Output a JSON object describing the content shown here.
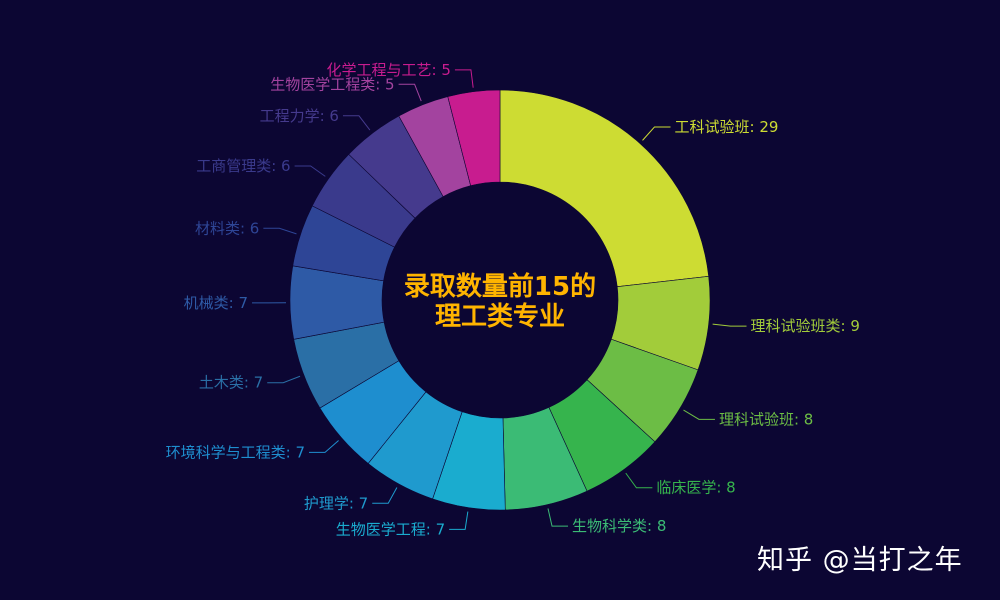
{
  "chart_data": {
    "type": "pie",
    "variant": "donut",
    "title": "录取数量前15的理工类专业",
    "title_lines": [
      "录取数量前15的",
      "理工类专业"
    ],
    "slices": [
      {
        "label": "工科试验班",
        "value": 29,
        "display": "工科试验班: 29",
        "color": "#cddc33"
      },
      {
        "label": "理科试验班类",
        "value": 9,
        "display": "理科试验班类: 9",
        "color": "#a2cc3a"
      },
      {
        "label": "理科试验班",
        "value": 8,
        "display": "理科试验班: 8",
        "color": "#6cbd45"
      },
      {
        "label": "临床医学",
        "value": 8,
        "display": "临床医学: 8",
        "color": "#36b44d"
      },
      {
        "label": "生物科学类",
        "value": 8,
        "display": "生物科学类: 8",
        "color": "#3bbb75"
      },
      {
        "label": "生物医学工程",
        "value": 7,
        "display": "生物医学工程: 7",
        "color": "#1aaccf"
      },
      {
        "label": "护理学",
        "value": 7,
        "display": "护理学: 7",
        "color": "#1f9ace"
      },
      {
        "label": "环境科学与工程类",
        "value": 7,
        "display": "环境科学与工程类: 7",
        "color": "#1e8ecf"
      },
      {
        "label": "土木类",
        "value": 7,
        "display": "土木类: 7",
        "color": "#2a6fa6"
      },
      {
        "label": "机械类",
        "value": 7,
        "display": "机械类: 7",
        "color": "#2e5aa6"
      },
      {
        "label": "材料类",
        "value": 6,
        "display": "材料类: 6",
        "color": "#2e4596"
      },
      {
        "label": "工商管理类",
        "value": 6,
        "display": "工商管理类: 6",
        "color": "#3a3a8c"
      },
      {
        "label": "工程力学",
        "value": 6,
        "display": "工程力学: 6",
        "color": "#453a8d"
      },
      {
        "label": "生物医学工程类",
        "value": 5,
        "display": "生物医学工程类: 5",
        "color": "#a3439f"
      },
      {
        "label": "化学工程与工艺",
        "value": 5,
        "display": "化学工程与工艺: 5",
        "color": "#c81c8f"
      }
    ],
    "legend": "none"
  },
  "watermark": {
    "text": "知乎 @当打之年"
  },
  "colors": {
    "background": "#0c0633",
    "title": "#ffb400",
    "watermark": "#ffffff"
  }
}
